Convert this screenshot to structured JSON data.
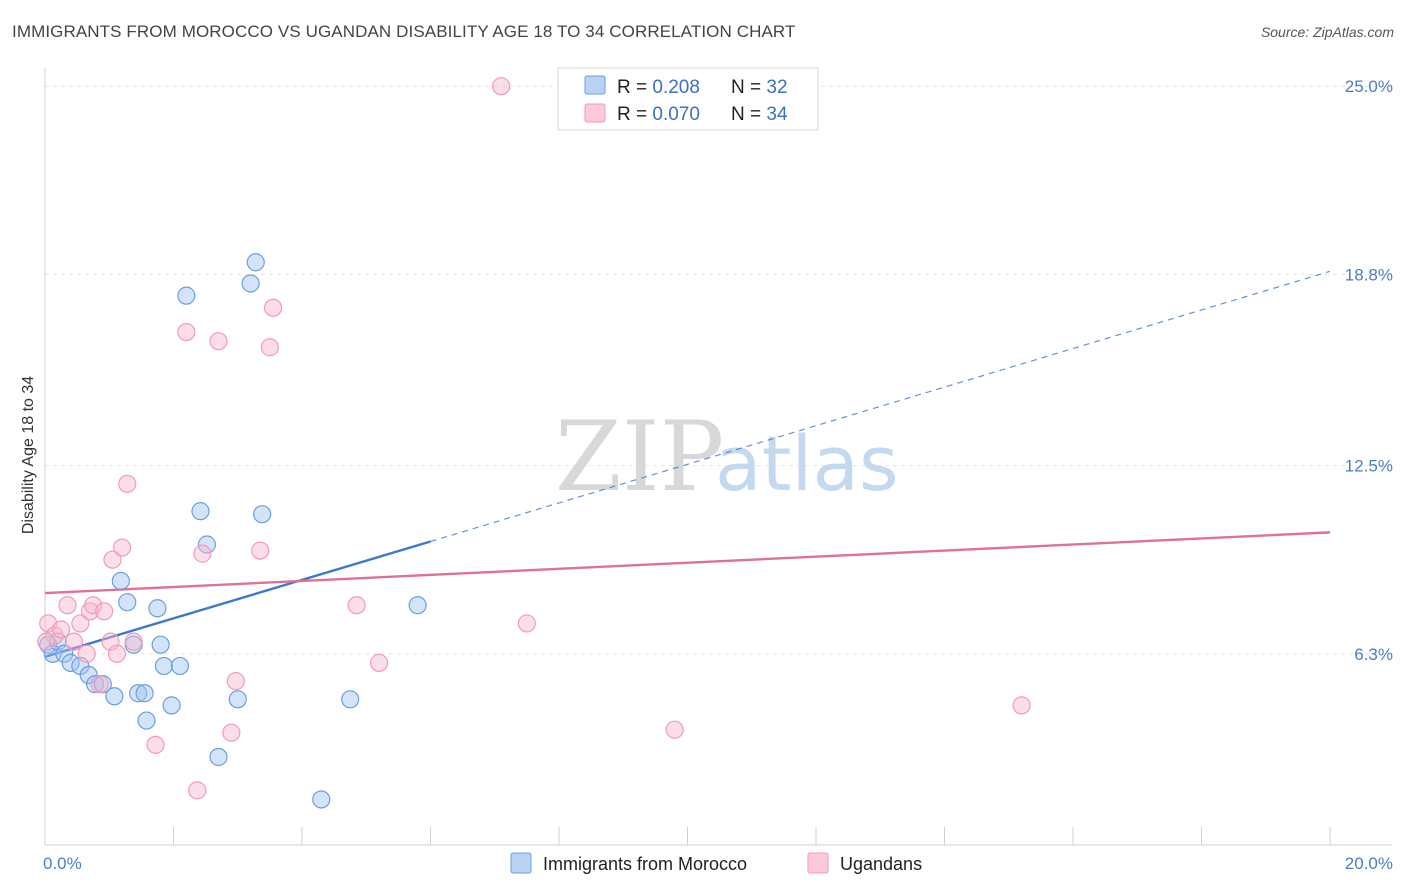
{
  "title": "IMMIGRANTS FROM MOROCCO VS UGANDAN DISABILITY AGE 18 TO 34 CORRELATION CHART",
  "source": "Source: ZipAtlas.com",
  "watermark": {
    "zip": "ZIP",
    "atlas": "atlas"
  },
  "chart_data": {
    "type": "scatter",
    "xlabel": "",
    "ylabel": "Disability Age 18 to 34",
    "xlim": [
      0,
      20
    ],
    "ylim": [
      0,
      25.6
    ],
    "x_tick_labels": [
      "0.0%",
      "20.0%"
    ],
    "y_ticks": [
      6.3,
      12.5,
      18.8,
      25.0
    ],
    "y_tick_labels": [
      "6.3%",
      "12.5%",
      "18.8%",
      "25.0%"
    ],
    "grid": true,
    "legend": {
      "placement": "top-center",
      "entries": [
        {
          "r_label": "R = ",
          "r_value": "0.208",
          "n_label": "N = ",
          "n_value": "32"
        },
        {
          "r_label": "R = ",
          "r_value": "0.070",
          "n_label": "N = ",
          "n_value": "34"
        }
      ]
    },
    "series": [
      {
        "name": "Immigrants from Morocco",
        "color": "#6a9fe0",
        "trend": {
          "x0": 0,
          "y0": 6.2,
          "x1": 6.0,
          "y1": 10.0,
          "dash_to_x": 20,
          "dash_to_y": 18.9,
          "color": "#3b78d0"
        },
        "points": [
          [
            0.05,
            6.6
          ],
          [
            0.12,
            6.3
          ],
          [
            0.2,
            6.7
          ],
          [
            0.3,
            6.3
          ],
          [
            0.4,
            6.0
          ],
          [
            0.55,
            5.9
          ],
          [
            0.68,
            5.6
          ],
          [
            0.78,
            5.3
          ],
          [
            0.9,
            5.3
          ],
          [
            1.08,
            4.9
          ],
          [
            1.18,
            8.7
          ],
          [
            1.28,
            8.0
          ],
          [
            1.38,
            6.6
          ],
          [
            1.45,
            5.0
          ],
          [
            1.55,
            5.0
          ],
          [
            1.58,
            4.1
          ],
          [
            1.75,
            7.8
          ],
          [
            1.8,
            6.6
          ],
          [
            1.85,
            5.9
          ],
          [
            1.97,
            4.6
          ],
          [
            2.1,
            5.9
          ],
          [
            2.2,
            18.1
          ],
          [
            2.42,
            11.0
          ],
          [
            2.52,
            9.9
          ],
          [
            2.7,
            2.9
          ],
          [
            3.0,
            4.8
          ],
          [
            3.2,
            18.5
          ],
          [
            3.28,
            19.2
          ],
          [
            3.38,
            10.9
          ],
          [
            4.3,
            1.5
          ],
          [
            4.75,
            4.8
          ],
          [
            5.8,
            7.9
          ]
        ]
      },
      {
        "name": "Ugandans",
        "color": "#f39ab8",
        "trend": {
          "x0": 0,
          "y0": 8.3,
          "x1": 20,
          "y1": 10.3,
          "color": "#e07098"
        },
        "points": [
          [
            0.05,
            7.3
          ],
          [
            0.15,
            6.9
          ],
          [
            0.25,
            7.1
          ],
          [
            0.35,
            7.9
          ],
          [
            0.45,
            6.7
          ],
          [
            0.55,
            7.3
          ],
          [
            0.65,
            6.3
          ],
          [
            0.7,
            7.7
          ],
          [
            0.75,
            7.9
          ],
          [
            0.85,
            5.3
          ],
          [
            0.92,
            7.7
          ],
          [
            1.02,
            6.7
          ],
          [
            1.05,
            9.4
          ],
          [
            1.12,
            6.3
          ],
          [
            1.2,
            9.8
          ],
          [
            1.28,
            11.9
          ],
          [
            1.38,
            6.7
          ],
          [
            1.72,
            3.3
          ],
          [
            2.2,
            16.9
          ],
          [
            2.37,
            1.8
          ],
          [
            2.45,
            9.6
          ],
          [
            2.7,
            16.6
          ],
          [
            2.9,
            3.7
          ],
          [
            2.97,
            5.4
          ],
          [
            3.35,
            9.7
          ],
          [
            3.5,
            16.4
          ],
          [
            3.55,
            17.7
          ],
          [
            4.85,
            7.9
          ],
          [
            5.2,
            6.0
          ],
          [
            7.1,
            25.0
          ],
          [
            7.5,
            7.3
          ],
          [
            9.8,
            3.8
          ],
          [
            15.2,
            4.6
          ],
          [
            0.02,
            6.7
          ]
        ]
      }
    ]
  }
}
